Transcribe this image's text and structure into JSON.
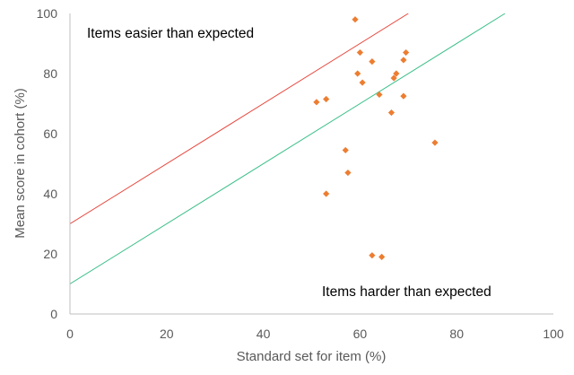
{
  "chart_data": {
    "type": "scatter",
    "xlabel": "Standard set for item (%)",
    "ylabel": "Mean score in cohort (%)",
    "xlim": [
      0,
      100
    ],
    "ylim": [
      0,
      100
    ],
    "x_ticks": [
      "0",
      "20",
      "40",
      "60",
      "80",
      "100"
    ],
    "y_ticks": [
      "0",
      "20",
      "40",
      "60",
      "80",
      "100"
    ],
    "grid": false,
    "marker_color": "#ED7D31",
    "points": [
      {
        "x": 59.0,
        "y": 98.0
      },
      {
        "x": 60.0,
        "y": 87.0
      },
      {
        "x": 69.5,
        "y": 87.0
      },
      {
        "x": 69.0,
        "y": 84.5
      },
      {
        "x": 62.5,
        "y": 84.0
      },
      {
        "x": 59.5,
        "y": 80.0
      },
      {
        "x": 67.5,
        "y": 80.0
      },
      {
        "x": 67.0,
        "y": 78.5
      },
      {
        "x": 60.5,
        "y": 77.0
      },
      {
        "x": 64.0,
        "y": 73.0
      },
      {
        "x": 69.0,
        "y": 72.5
      },
      {
        "x": 53.0,
        "y": 71.5
      },
      {
        "x": 51.0,
        "y": 70.5
      },
      {
        "x": 66.5,
        "y": 67.0
      },
      {
        "x": 75.5,
        "y": 57.0
      },
      {
        "x": 57.0,
        "y": 54.5
      },
      {
        "x": 57.5,
        "y": 47.0
      },
      {
        "x": 53.0,
        "y": 40.0
      },
      {
        "x": 62.5,
        "y": 19.5
      },
      {
        "x": 64.5,
        "y": 19.0
      }
    ],
    "reference_lines": [
      {
        "color": "#E8483F",
        "from": [
          0,
          30
        ],
        "to": [
          70,
          100
        ]
      },
      {
        "color": "#3CC08A",
        "from": [
          0,
          10
        ],
        "to": [
          90,
          100
        ]
      }
    ],
    "annotations": [
      {
        "text": "Items easier than expected"
      },
      {
        "text": "Items harder than expected"
      }
    ]
  }
}
